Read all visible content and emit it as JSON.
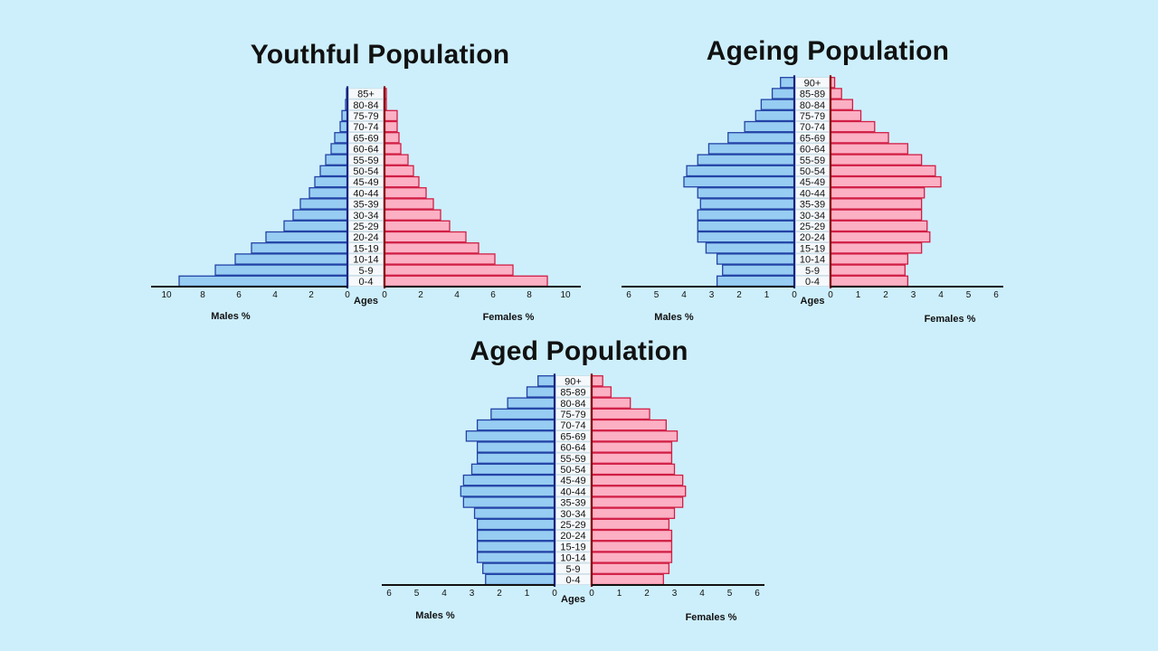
{
  "chart_data": [
    {
      "type": "bar",
      "title": "Youthful Population",
      "center_label": "Ages",
      "left_label": "Males %",
      "right_label": "Females %",
      "x_max": 10,
      "x_ticks": [
        0,
        2,
        4,
        6,
        8,
        10
      ],
      "categories": [
        "0-4",
        "5-9",
        "10-14",
        "15-19",
        "20-24",
        "25-29",
        "30-34",
        "35-39",
        "40-44",
        "45-49",
        "50-54",
        "55-59",
        "60-64",
        "65-69",
        "70-74",
        "75-79",
        "80-84",
        "85+"
      ],
      "series": [
        {
          "name": "Males %",
          "values": [
            9.3,
            7.3,
            6.2,
            5.3,
            4.5,
            3.5,
            3.0,
            2.6,
            2.1,
            1.8,
            1.5,
            1.2,
            0.9,
            0.7,
            0.4,
            0.3,
            0.1,
            0.05
          ]
        },
        {
          "name": "Females %",
          "values": [
            9.0,
            7.1,
            6.1,
            5.2,
            4.5,
            3.6,
            3.1,
            2.7,
            2.3,
            1.9,
            1.6,
            1.3,
            0.9,
            0.8,
            0.7,
            0.7,
            0.1,
            0.1
          ]
        }
      ]
    },
    {
      "type": "bar",
      "title": "Ageing Population",
      "center_label": "Ages",
      "left_label": "Males %",
      "right_label": "Females %",
      "x_max": 6,
      "x_ticks": [
        0,
        1,
        2,
        3,
        4,
        5,
        6
      ],
      "categories": [
        "0-4",
        "5-9",
        "10-14",
        "15-19",
        "20-24",
        "25-29",
        "30-34",
        "35-39",
        "40-44",
        "45-49",
        "50-54",
        "55-59",
        "60-64",
        "65-69",
        "70-74",
        "75-79",
        "80-84",
        "85-89",
        "90+"
      ],
      "series": [
        {
          "name": "Males %",
          "values": [
            2.8,
            2.6,
            2.8,
            3.2,
            3.5,
            3.5,
            3.5,
            3.4,
            3.5,
            4.0,
            3.9,
            3.5,
            3.1,
            2.4,
            1.8,
            1.4,
            1.2,
            0.8,
            0.5
          ]
        },
        {
          "name": "Females %",
          "values": [
            2.8,
            2.7,
            2.8,
            3.3,
            3.6,
            3.5,
            3.3,
            3.3,
            3.4,
            4.0,
            3.8,
            3.3,
            2.8,
            2.1,
            1.6,
            1.1,
            0.8,
            0.4,
            0.15
          ]
        }
      ]
    },
    {
      "type": "bar",
      "title": "Aged Population",
      "center_label": "Ages",
      "left_label": "Males %",
      "right_label": "Females %",
      "x_max": 6,
      "x_ticks": [
        0,
        1,
        2,
        3,
        4,
        5,
        6
      ],
      "categories": [
        "0-4",
        "5-9",
        "10-14",
        "15-19",
        "20-24",
        "25-29",
        "30-34",
        "35-39",
        "40-44",
        "45-49",
        "50-54",
        "55-59",
        "60-64",
        "65-69",
        "70-74",
        "75-79",
        "80-84",
        "85-89",
        "90+"
      ],
      "series": [
        {
          "name": "Males %",
          "values": [
            2.5,
            2.6,
            2.8,
            2.8,
            2.8,
            2.8,
            2.9,
            3.3,
            3.4,
            3.3,
            3.0,
            2.8,
            2.8,
            3.2,
            2.8,
            2.3,
            1.7,
            1.0,
            0.6
          ]
        },
        {
          "name": "Females %",
          "values": [
            2.6,
            2.8,
            2.9,
            2.9,
            2.9,
            2.8,
            3.0,
            3.3,
            3.4,
            3.3,
            3.0,
            2.9,
            2.9,
            3.1,
            2.7,
            2.1,
            1.4,
            0.7,
            0.4
          ]
        }
      ]
    }
  ],
  "colors": {
    "male_fill": "#97cdf2",
    "male_stroke": "#2343a6",
    "female_fill": "#fcb0c4",
    "female_stroke": "#d11e45",
    "axis": "#111111"
  }
}
